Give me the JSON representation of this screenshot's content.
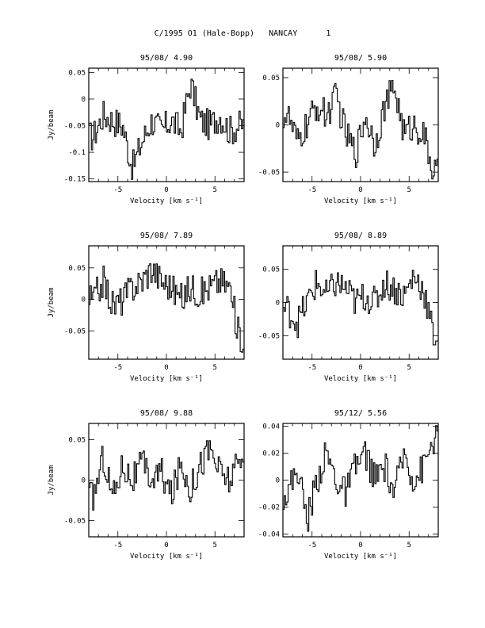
{
  "page_title": "C/1995 O1 (Hale-Bopp)   NANCAY      1",
  "chart_data": [
    {
      "type": "line",
      "title": "95/08/ 4.90",
      "xlabel": "Velocity [km s⁻¹]",
      "ylabel": "Jy/beam",
      "xlim": [
        -8,
        8
      ],
      "ylim": [
        -0.155,
        0.058
      ],
      "xticks": [
        -5,
        0,
        5
      ],
      "yticks": [
        -0.15,
        -0.1,
        -0.05,
        0,
        0.05
      ],
      "ytick_labels": [
        "-0.15",
        "-0.1",
        "-0.05",
        "0",
        "0.05"
      ],
      "x": [
        -7.5,
        -6.5,
        -5.5,
        -4.5,
        -3.5,
        -2.5,
        -1.5,
        -0.5,
        0.5,
        1.5,
        2.5,
        3.5,
        4.5,
        5.5,
        6.5,
        7.5
      ],
      "y": [
        -0.07,
        -0.03,
        -0.04,
        -0.05,
        -0.13,
        -0.08,
        -0.04,
        -0.06,
        -0.04,
        -0.06,
        0.03,
        -0.04,
        -0.05,
        -0.03,
        -0.06,
        -0.05
      ]
    },
    {
      "type": "line",
      "title": "95/08/ 5.90",
      "xlabel": "Velocity [km s⁻¹]",
      "ylabel": "",
      "xlim": [
        -8,
        8
      ],
      "ylim": [
        -0.06,
        0.06
      ],
      "xticks": [
        -5,
        0,
        5
      ],
      "yticks": [
        -0.05,
        0,
        0.05
      ],
      "ytick_labels": [
        "-0.05",
        "0",
        "0.05"
      ],
      "x": [
        -7.5,
        -6.5,
        -5.5,
        -4.5,
        -3.5,
        -2.5,
        -1.5,
        -0.5,
        0.5,
        1.5,
        2.5,
        3.5,
        4.5,
        5.5,
        6.5,
        7.5
      ],
      "y": [
        0.01,
        -0.02,
        0.0,
        0.02,
        0.01,
        0.03,
        -0.01,
        -0.03,
        0.01,
        -0.02,
        0.02,
        0.04,
        -0.01,
        0.0,
        -0.01,
        -0.05
      ]
    },
    {
      "type": "line",
      "title": "95/08/ 7.89",
      "xlabel": "Velocity [km s⁻¹]",
      "ylabel": "Jy/beam",
      "xlim": [
        -8,
        8
      ],
      "ylim": [
        -0.095,
        0.085
      ],
      "xticks": [
        -5,
        0,
        5
      ],
      "yticks": [
        -0.05,
        0,
        0.05
      ],
      "ytick_labels": [
        "-0.05",
        "0",
        "0.05"
      ],
      "x": [
        -7.5,
        -6.5,
        -5.5,
        -4.5,
        -3.5,
        -2.5,
        -1.5,
        -0.5,
        0.5,
        1.5,
        2.5,
        3.5,
        4.5,
        5.5,
        6.5,
        7.5
      ],
      "y": [
        0.0,
        0.03,
        -0.01,
        0.0,
        0.02,
        0.03,
        0.05,
        0.03,
        0.02,
        0.0,
        0.02,
        0.01,
        0.02,
        0.03,
        0.02,
        -0.06
      ]
    },
    {
      "type": "line",
      "title": "95/08/ 8.89",
      "xlabel": "Velocity [km s⁻¹]",
      "ylabel": "",
      "xlim": [
        -8,
        8
      ],
      "ylim": [
        -0.085,
        0.085
      ],
      "xticks": [
        -5,
        0,
        5
      ],
      "yticks": [
        -0.05,
        0,
        0.05
      ],
      "ytick_labels": [
        "-0.05",
        "0",
        "0.05"
      ],
      "x": [
        -7.5,
        -6.5,
        -5.5,
        -4.5,
        -3.5,
        -2.5,
        -1.5,
        -0.5,
        0.5,
        1.5,
        2.5,
        3.5,
        4.5,
        5.5,
        6.5,
        7.5
      ],
      "y": [
        -0.01,
        -0.03,
        0.0,
        0.03,
        0.01,
        0.03,
        0.02,
        0.0,
        0.01,
        0.0,
        0.03,
        0.02,
        0.01,
        0.04,
        0.02,
        -0.05
      ]
    },
    {
      "type": "line",
      "title": "95/08/ 9.88",
      "xlabel": "Velocity [km s⁻¹]",
      "ylabel": "Jy/beam",
      "xlim": [
        -8,
        8
      ],
      "ylim": [
        -0.07,
        0.07
      ],
      "xticks": [
        -5,
        0,
        5
      ],
      "yticks": [
        -0.05,
        0,
        0.05
      ],
      "ytick_labels": [
        "-0.05",
        "0",
        "0.05"
      ],
      "x": [
        -7.5,
        -6.5,
        -5.5,
        -4.5,
        -3.5,
        -2.5,
        -1.5,
        -0.5,
        0.5,
        1.5,
        2.5,
        3.5,
        4.5,
        5.5,
        6.5,
        7.5
      ],
      "y": [
        -0.02,
        0.03,
        -0.02,
        0.02,
        0.0,
        0.02,
        0.0,
        0.01,
        -0.02,
        0.02,
        -0.01,
        0.02,
        0.04,
        0.01,
        0.0,
        0.02
      ]
    },
    {
      "type": "line",
      "title": "95/12/ 5.56",
      "xlabel": "Velocity [km s⁻¹]",
      "ylabel": "",
      "xlim": [
        -8,
        8
      ],
      "ylim": [
        -0.042,
        0.042
      ],
      "xticks": [
        -5,
        0,
        5
      ],
      "yticks": [
        -0.04,
        -0.02,
        0,
        0.02,
        0.04
      ],
      "ytick_labels": [
        "-0.04",
        "-0.02",
        "0",
        "0.02",
        "0.04"
      ],
      "x": [
        -7.5,
        -6.5,
        -5.5,
        -4.5,
        -3.5,
        -2.5,
        -1.5,
        -0.5,
        0.5,
        1.5,
        2.5,
        3.5,
        4.5,
        5.5,
        6.5,
        7.5
      ],
      "y": [
        -0.01,
        0.01,
        -0.03,
        0.0,
        0.02,
        0.0,
        -0.01,
        0.01,
        0.02,
        0.0,
        0.01,
        -0.01,
        0.02,
        0.0,
        0.01,
        0.03
      ]
    }
  ]
}
